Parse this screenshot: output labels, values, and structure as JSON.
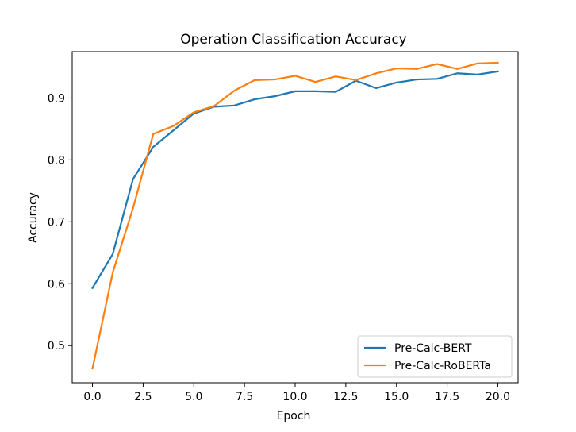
{
  "chart_data": {
    "type": "line",
    "title": "Operation Classification Accuracy",
    "xlabel": "Epoch",
    "ylabel": "Accuracy",
    "xlim": [
      -1.0,
      21.0
    ],
    "ylim": [
      0.44,
      0.975
    ],
    "x": [
      0,
      1,
      2,
      3,
      4,
      5,
      6,
      7,
      8,
      9,
      10,
      11,
      12,
      13,
      14,
      15,
      16,
      17,
      18,
      19,
      20
    ],
    "xticks": [
      0.0,
      2.5,
      5.0,
      7.5,
      10.0,
      12.5,
      15.0,
      17.5,
      20.0
    ],
    "xtick_labels": [
      "0.0",
      "2.5",
      "5.0",
      "7.5",
      "10.0",
      "12.5",
      "15.0",
      "17.5",
      "20.0"
    ],
    "yticks": [
      0.5,
      0.6,
      0.7,
      0.8,
      0.9
    ],
    "ytick_labels": [
      "0.5",
      "0.6",
      "0.7",
      "0.8",
      "0.9"
    ],
    "grid": false,
    "legend_position": "lower-right",
    "series": [
      {
        "name": "Pre-Calc-BERT",
        "color": "#1f77b4",
        "values": [
          0.593,
          0.648,
          0.769,
          0.821,
          0.848,
          0.875,
          0.886,
          0.888,
          0.898,
          0.903,
          0.911,
          0.911,
          0.91,
          0.928,
          0.916,
          0.925,
          0.93,
          0.931,
          0.94,
          0.938,
          0.943
        ]
      },
      {
        "name": "Pre-Calc-RoBERTa",
        "color": "#ff7f0e",
        "values": [
          0.463,
          0.618,
          0.722,
          0.842,
          0.855,
          0.877,
          0.887,
          0.912,
          0.929,
          0.93,
          0.936,
          0.926,
          0.935,
          0.929,
          0.94,
          0.948,
          0.947,
          0.955,
          0.947,
          0.956,
          0.957
        ]
      }
    ]
  }
}
